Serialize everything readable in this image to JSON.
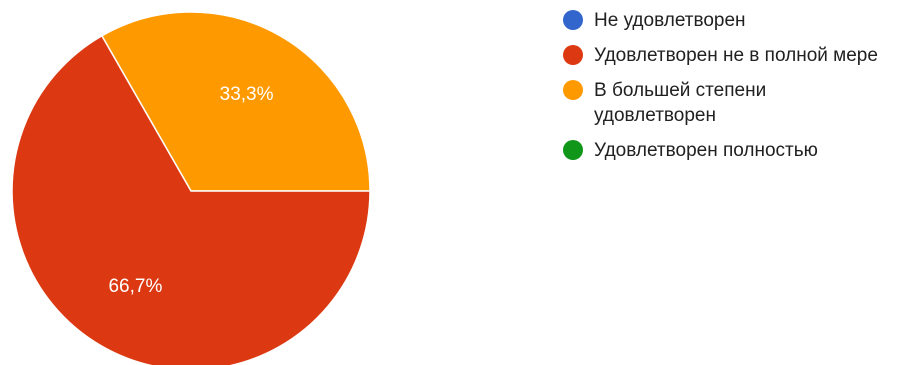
{
  "chart_data": {
    "type": "pie",
    "categories": [
      "Не удовлетворен",
      "Удовлетворен не в полной мере",
      "В большей степени удовлетворен",
      "Удовлетворен полностью"
    ],
    "values": [
      0,
      66.7,
      33.3,
      0
    ],
    "value_labels": [
      "",
      "66,7%",
      "33,3%",
      ""
    ],
    "colors": [
      "#3366cc",
      "#dc3912",
      "#ff9900",
      "#109618"
    ],
    "legend_position": "right",
    "title": ""
  }
}
